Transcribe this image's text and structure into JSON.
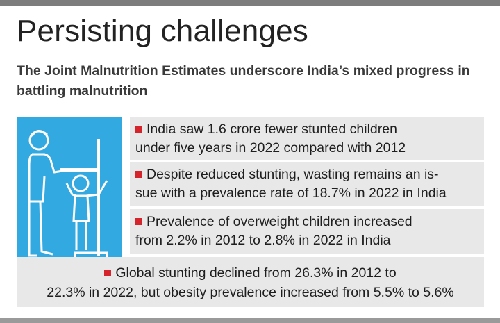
{
  "headline": "Persisting challenges",
  "subhead": "The Joint Malnutrition Estimates underscore India’s mixed progress in battling malnutrition",
  "colors": {
    "bullet": "#d6242d",
    "illustration_bg": "#33a9e2",
    "panel_bg": "#e8e8e8"
  },
  "illustration": {
    "icon": "health-worker-measuring-child-height-icon"
  },
  "items": [
    {
      "lines": [
        "India saw 1.6 crore fewer stunted children",
        "under five years in 2022 compared with 2012"
      ]
    },
    {
      "lines": [
        "Despite reduced stunting, wasting remains an is-",
        "sue with a prevalence rate of 18.7% in 2022 in India"
      ]
    },
    {
      "lines": [
        "Prevalence of overweight children increased",
        "from 2.2% in 2012 to 2.8% in 2022 in India"
      ]
    },
    {
      "lines": [
        "Global stunting declined from 26.3% in 2012 to",
        "22.3% in 2022, but obesity prevalence increased from 5.5% to 5.6%"
      ]
    }
  ]
}
